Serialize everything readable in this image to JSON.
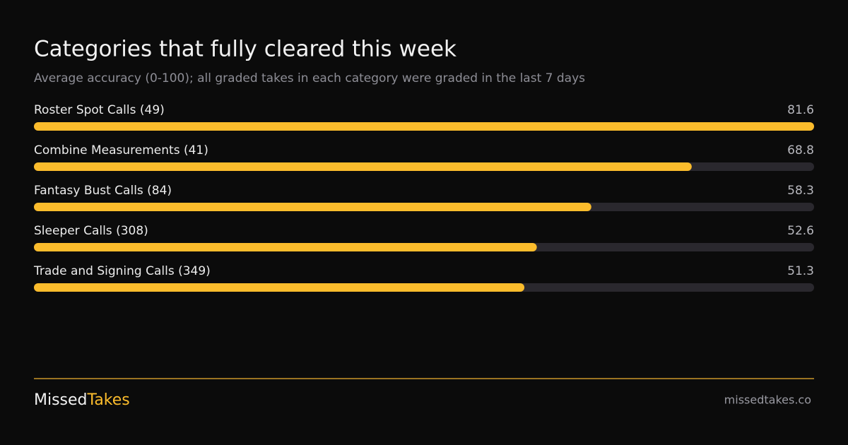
{
  "chart_data": {
    "type": "bar",
    "orientation": "horizontal",
    "title": "Categories that fully cleared this week",
    "subtitle": "Average accuracy (0-100); all graded takes in each category were graded in the last 7 days",
    "categories": [
      "Roster Spot Calls (49)",
      "Combine Measurements (41)",
      "Fantasy Bust Calls (84)",
      "Sleeper Calls (308)",
      "Trade and Signing Calls (349)"
    ],
    "values": [
      81.6,
      68.8,
      58.3,
      52.6,
      51.3
    ],
    "xlim": [
      0,
      81.6
    ],
    "color": "#fbbc2c",
    "track_color": "#2a282e"
  },
  "footer": {
    "brand_first": "Missed",
    "brand_second": "Takes",
    "url": "missedtakes.co"
  }
}
